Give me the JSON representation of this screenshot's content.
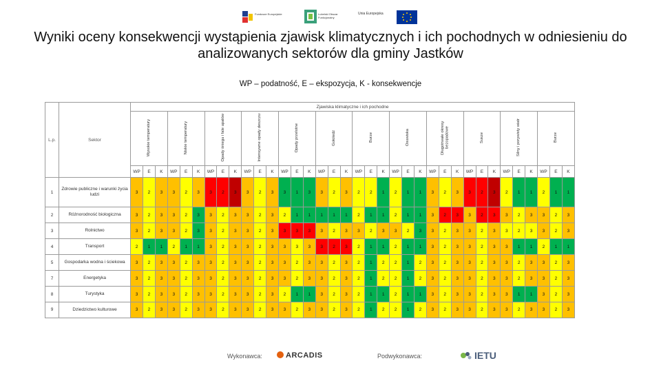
{
  "title": "Wyniki oceny konsekwencji wystąpienia zjawisk klimatycznych i ich pochodnych w odniesieniu do analizowanych sektorów dla gminy Jastków",
  "subtitle": "WP – podatność, E – ekspozycja, K - konsekwencje",
  "logos": {
    "fe": "Fundusze Europejskie",
    "lfo": "Lubelski Obszar Funkcjonalny",
    "ue": "Unia Europejska"
  },
  "table": {
    "main_header": "Zjawiska klimatyczne i ich pochodne",
    "col_lp": "L.p.",
    "col_sektor": "Sektor",
    "phenomena": [
      "Wysokie temperatury",
      "Niskie temperatury",
      "Opady śniegu i fale upałów",
      "Intensywne opady deszczu",
      "Opady przelotne",
      "Gołoledź",
      "Burze",
      "Osuwiska",
      "Długotrwałe okresy bezopadowe",
      "Susze",
      "Silny i porywisty wiatr",
      "Burze"
    ],
    "sub_headers": [
      "WP",
      "E",
      "K"
    ],
    "rows": [
      {
        "lp": "1",
        "sektor": "Zdrowie publiczne i warunki życia ludzi",
        "vals": [
          "3",
          "2",
          "3",
          "3",
          "2",
          "3",
          "3",
          "2",
          "3",
          "3",
          "2",
          "3",
          "3",
          "1",
          "3",
          "3",
          "2",
          "3",
          "2",
          "2",
          "1",
          "2",
          "1",
          "1",
          "3",
          "2",
          "3",
          "3",
          "2",
          "3",
          "2",
          "1",
          "1",
          "2",
          "1",
          "1"
        ],
        "colors": [
          "o",
          "y",
          "o",
          "o",
          "y",
          "o",
          "r",
          "r",
          "dr",
          "o",
          "y",
          "o",
          "g",
          "g",
          "g",
          "o",
          "y",
          "o",
          "y",
          "y",
          "g",
          "y",
          "g",
          "g",
          "o",
          "y",
          "o",
          "r",
          "r",
          "dr",
          "y",
          "g",
          "g",
          "y",
          "g",
          "g"
        ]
      },
      {
        "lp": "2",
        "sektor": "Różnorodność biologiczna",
        "vals": [
          "3",
          "2",
          "3",
          "3",
          "2",
          "3",
          "3",
          "2",
          "3",
          "3",
          "2",
          "3",
          "2",
          "1",
          "1",
          "1",
          "1",
          "1",
          "2",
          "1",
          "1",
          "2",
          "1",
          "1",
          "3",
          "2",
          "3",
          "3",
          "2",
          "3",
          "3",
          "2",
          "3",
          "3",
          "2",
          "3"
        ],
        "colors": [
          "o",
          "y",
          "o",
          "o",
          "y",
          "g",
          "o",
          "y",
          "o",
          "o",
          "y",
          "o",
          "y",
          "g",
          "g",
          "g",
          "g",
          "g",
          "y",
          "g",
          "g",
          "y",
          "g",
          "g",
          "o",
          "r",
          "r",
          "o",
          "r",
          "r",
          "o",
          "y",
          "o",
          "o",
          "y",
          "o"
        ]
      },
      {
        "lp": "3",
        "sektor": "Rolnictwo",
        "vals": [
          "3",
          "2",
          "3",
          "3",
          "2",
          "3",
          "3",
          "2",
          "3",
          "3",
          "2",
          "3",
          "3",
          "3",
          "3",
          "3",
          "2",
          "3",
          "3",
          "2",
          "3",
          "3",
          "2",
          "3",
          "3",
          "2",
          "3",
          "3",
          "2",
          "3",
          "3",
          "2",
          "3",
          "3",
          "2",
          "3"
        ],
        "colors": [
          "o",
          "y",
          "o",
          "o",
          "y",
          "g",
          "o",
          "y",
          "o",
          "o",
          "y",
          "o",
          "r",
          "r",
          "r",
          "o",
          "y",
          "o",
          "o",
          "y",
          "o",
          "o",
          "y",
          "g",
          "o",
          "y",
          "o",
          "o",
          "y",
          "o",
          "y",
          "y",
          "y",
          "o",
          "y",
          "o"
        ]
      },
      {
        "lp": "4",
        "sektor": "Transport",
        "vals": [
          "2",
          "1",
          "1",
          "2",
          "1",
          "1",
          "3",
          "2",
          "3",
          "3",
          "2",
          "3",
          "3",
          "3",
          "3",
          "3",
          "2",
          "3",
          "2",
          "1",
          "1",
          "2",
          "1",
          "1",
          "3",
          "2",
          "3",
          "3",
          "2",
          "3",
          "3",
          "1",
          "1",
          "2",
          "1",
          "1"
        ],
        "colors": [
          "y",
          "g",
          "g",
          "y",
          "g",
          "g",
          "o",
          "y",
          "o",
          "o",
          "y",
          "o",
          "o",
          "y",
          "o",
          "r",
          "r",
          "r",
          "y",
          "g",
          "g",
          "y",
          "g",
          "g",
          "o",
          "y",
          "o",
          "o",
          "y",
          "o",
          "o",
          "g",
          "g",
          "y",
          "g",
          "g"
        ]
      },
      {
        "lp": "5",
        "sektor": "Gospodarka wodna i ściekowa",
        "vals": [
          "3",
          "2",
          "3",
          "3",
          "2",
          "3",
          "3",
          "2",
          "3",
          "3",
          "2",
          "3",
          "3",
          "2",
          "3",
          "3",
          "2",
          "3",
          "2",
          "1",
          "2",
          "2",
          "1",
          "2",
          "3",
          "2",
          "3",
          "3",
          "2",
          "3",
          "3",
          "2",
          "3",
          "3",
          "2",
          "3"
        ],
        "colors": [
          "o",
          "y",
          "o",
          "o",
          "y",
          "o",
          "o",
          "y",
          "o",
          "o",
          "y",
          "o",
          "o",
          "y",
          "o",
          "o",
          "y",
          "o",
          "y",
          "g",
          "y",
          "y",
          "g",
          "y",
          "o",
          "y",
          "o",
          "o",
          "y",
          "o",
          "o",
          "y",
          "o",
          "o",
          "y",
          "o"
        ]
      },
      {
        "lp": "7",
        "sektor": "Energetyka",
        "vals": [
          "3",
          "2",
          "3",
          "3",
          "2",
          "3",
          "3",
          "2",
          "3",
          "3",
          "2",
          "3",
          "3",
          "2",
          "3",
          "3",
          "2",
          "3",
          "2",
          "1",
          "2",
          "2",
          "1",
          "2",
          "3",
          "2",
          "3",
          "3",
          "2",
          "3",
          "3",
          "2",
          "3",
          "3",
          "2",
          "3"
        ],
        "colors": [
          "o",
          "y",
          "o",
          "o",
          "y",
          "o",
          "o",
          "y",
          "o",
          "o",
          "y",
          "o",
          "o",
          "y",
          "o",
          "o",
          "y",
          "o",
          "y",
          "g",
          "y",
          "y",
          "g",
          "y",
          "o",
          "y",
          "o",
          "o",
          "y",
          "o",
          "o",
          "y",
          "o",
          "o",
          "y",
          "o"
        ]
      },
      {
        "lp": "8",
        "sektor": "Turystyka",
        "vals": [
          "3",
          "2",
          "3",
          "3",
          "2",
          "3",
          "3",
          "2",
          "3",
          "3",
          "2",
          "3",
          "2",
          "1",
          "1",
          "3",
          "2",
          "3",
          "2",
          "1",
          "1",
          "2",
          "1",
          "1",
          "3",
          "2",
          "3",
          "3",
          "2",
          "3",
          "3",
          "1",
          "1",
          "3",
          "2",
          "3"
        ],
        "colors": [
          "o",
          "y",
          "o",
          "o",
          "y",
          "o",
          "o",
          "y",
          "o",
          "o",
          "y",
          "o",
          "y",
          "g",
          "g",
          "o",
          "y",
          "o",
          "y",
          "g",
          "g",
          "y",
          "g",
          "g",
          "o",
          "y",
          "o",
          "o",
          "y",
          "o",
          "o",
          "g",
          "g",
          "o",
          "y",
          "o"
        ]
      },
      {
        "lp": "9",
        "sektor": "Dziedzictwo kulturowe",
        "vals": [
          "3",
          "2",
          "3",
          "3",
          "2",
          "3",
          "3",
          "2",
          "3",
          "3",
          "2",
          "3",
          "3",
          "2",
          "3",
          "3",
          "2",
          "3",
          "2",
          "1",
          "2",
          "2",
          "1",
          "2",
          "3",
          "2",
          "3",
          "3",
          "2",
          "3",
          "3",
          "2",
          "3",
          "3",
          "2",
          "3"
        ],
        "colors": [
          "o",
          "y",
          "o",
          "o",
          "y",
          "o",
          "o",
          "y",
          "o",
          "o",
          "y",
          "o",
          "o",
          "y",
          "o",
          "o",
          "y",
          "o",
          "y",
          "g",
          "y",
          "y",
          "g",
          "y",
          "o",
          "y",
          "o",
          "o",
          "y",
          "o",
          "o",
          "y",
          "o",
          "o",
          "y",
          "o"
        ]
      }
    ]
  },
  "footer": {
    "wykonawca_label": "Wykonawca:",
    "wykonawca_name": "ARCADIS",
    "podwykonawca_label": "Podwykonawca:",
    "podwykonawca_name": "IETU"
  }
}
